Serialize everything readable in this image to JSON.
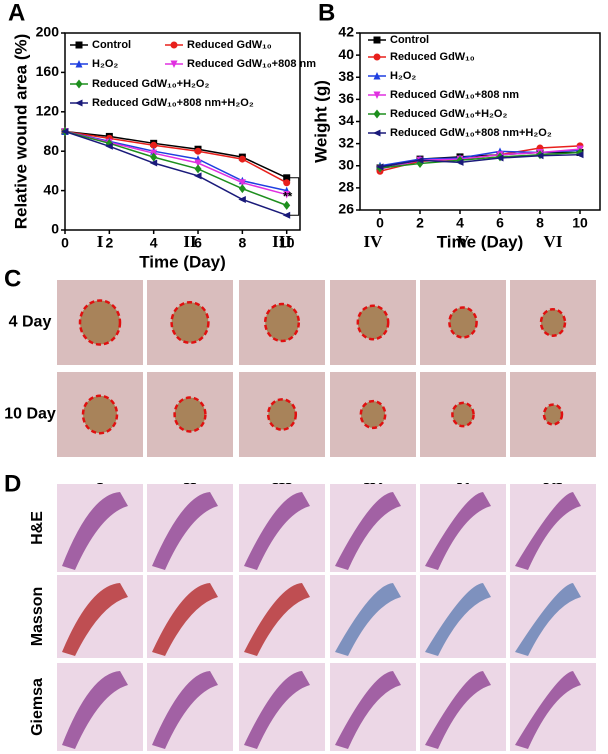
{
  "chart_data": [
    {
      "type": "line",
      "letter": "A",
      "ylabel": "Relative wound area (%)",
      "xlabel": "Time (Day)",
      "x": [
        0,
        2,
        4,
        6,
        8,
        10
      ],
      "xlim": [
        0,
        10.6
      ],
      "xticks": [
        0,
        2,
        4,
        6,
        8,
        10
      ],
      "ylim": [
        0,
        200
      ],
      "yticks": [
        0,
        40,
        80,
        120,
        160,
        200
      ],
      "annotation": "**",
      "series": [
        {
          "name": "Control",
          "color": "#000000",
          "marker": "square",
          "values": [
            100,
            95,
            88,
            82,
            74,
            53
          ]
        },
        {
          "name": "Reduced GdW₁₀",
          "color": "#e8201c",
          "marker": "circle",
          "values": [
            100,
            93,
            86,
            80,
            72,
            48
          ]
        },
        {
          "name": "H₂O₂",
          "color": "#1f3fe0",
          "marker": "triangle-up",
          "values": [
            100,
            90,
            80,
            72,
            50,
            40
          ]
        },
        {
          "name": "Reduced GdW₁₀+808 nm",
          "color": "#e030e0",
          "marker": "triangle-down",
          "values": [
            100,
            89,
            78,
            68,
            48,
            36
          ]
        },
        {
          "name": "Reduced GdW₁₀+H₂O₂",
          "color": "#1e8f1e",
          "marker": "diamond",
          "values": [
            100,
            88,
            74,
            62,
            42,
            25
          ]
        },
        {
          "name": "Reduced GdW₁₀+808 nm+H₂O₂",
          "color": "#1a1a7a",
          "marker": "triangle-left",
          "values": [
            100,
            85,
            68,
            55,
            31,
            15
          ]
        }
      ]
    },
    {
      "type": "line",
      "letter": "B",
      "ylabel": "Weight (g)",
      "xlabel": "Time (Day)",
      "x": [
        0,
        2,
        4,
        6,
        8,
        10
      ],
      "xlim": [
        -1,
        11
      ],
      "xticks": [
        0,
        2,
        4,
        6,
        8,
        10
      ],
      "ylim": [
        26,
        42
      ],
      "yticks": [
        26,
        28,
        30,
        32,
        34,
        36,
        38,
        40,
        42
      ],
      "series": [
        {
          "name": "Control",
          "color": "#000000",
          "marker": "square",
          "values": [
            29.8,
            30.6,
            30.8,
            31.0,
            31.2,
            31.2
          ]
        },
        {
          "name": "Reduced  GdW₁₀",
          "color": "#e8201c",
          "marker": "circle",
          "values": [
            29.5,
            30.4,
            30.6,
            31.0,
            31.6,
            31.8
          ]
        },
        {
          "name": "H₂O₂",
          "color": "#1f3fe0",
          "marker": "triangle-up",
          "values": [
            30.0,
            30.6,
            30.7,
            31.3,
            31.2,
            31.4
          ]
        },
        {
          "name": "Reduced GdW₁₀+808 nm",
          "color": "#e030e0",
          "marker": "triangle-down",
          "values": [
            29.7,
            30.5,
            30.6,
            31.0,
            31.2,
            31.5
          ]
        },
        {
          "name": "Reduced GdW₁₀+H₂O₂",
          "color": "#1e8f1e",
          "marker": "diamond",
          "values": [
            29.8,
            30.2,
            30.5,
            30.8,
            31.0,
            31.2
          ]
        },
        {
          "name": "Reduced GdW₁₀+808 nm+H₂O₂",
          "color": "#1a1a7a",
          "marker": "triangle-left",
          "values": [
            29.9,
            30.5,
            30.3,
            30.7,
            30.9,
            31.0
          ]
        }
      ]
    }
  ],
  "panels": [
    {
      "letter": "C",
      "columns": [
        "I",
        "II",
        "III",
        "IV",
        "V",
        "VI"
      ],
      "rows": [
        "4 Day",
        "10 Day"
      ]
    },
    {
      "letter": "D",
      "columns": [
        "I",
        "II",
        "III",
        "IV",
        "V",
        "VI"
      ],
      "rows": [
        "H&E",
        "Masson",
        "Giemsa"
      ]
    }
  ]
}
